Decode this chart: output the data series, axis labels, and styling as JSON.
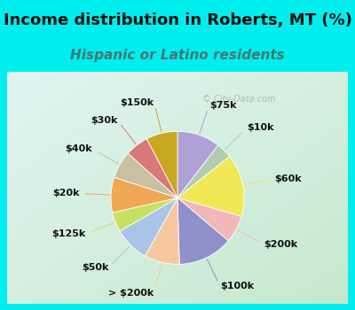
{
  "title": "Income distribution in Roberts, MT (%)",
  "subtitle": "Hispanic or Latino residents",
  "watermark": "© City-Data.com",
  "background_outer": "#00EEEE",
  "background_chart_tl": "#d8f0e8",
  "background_chart_br": "#c0e8d0",
  "labels": [
    "$75k",
    "$10k",
    "$60k",
    "$200k",
    "$100k",
    "> $200k",
    "$50k",
    "$125k",
    "$20k",
    "$40k",
    "$30k",
    "$150k"
  ],
  "sizes": [
    11,
    4,
    16,
    7,
    14,
    9,
    9,
    5,
    9,
    7,
    6,
    8
  ],
  "colors": [
    "#b0a0d8",
    "#b0ccb0",
    "#f0e855",
    "#f0b8b8",
    "#9090cc",
    "#f5c8a0",
    "#aac4e8",
    "#c8e060",
    "#f0a855",
    "#c8c0a0",
    "#d87878",
    "#c8a820"
  ],
  "title_fontsize": 13,
  "subtitle_fontsize": 11,
  "title_color": "#111111",
  "subtitle_color": "#447777",
  "label_fontsize": 8,
  "label_color": "#111111"
}
